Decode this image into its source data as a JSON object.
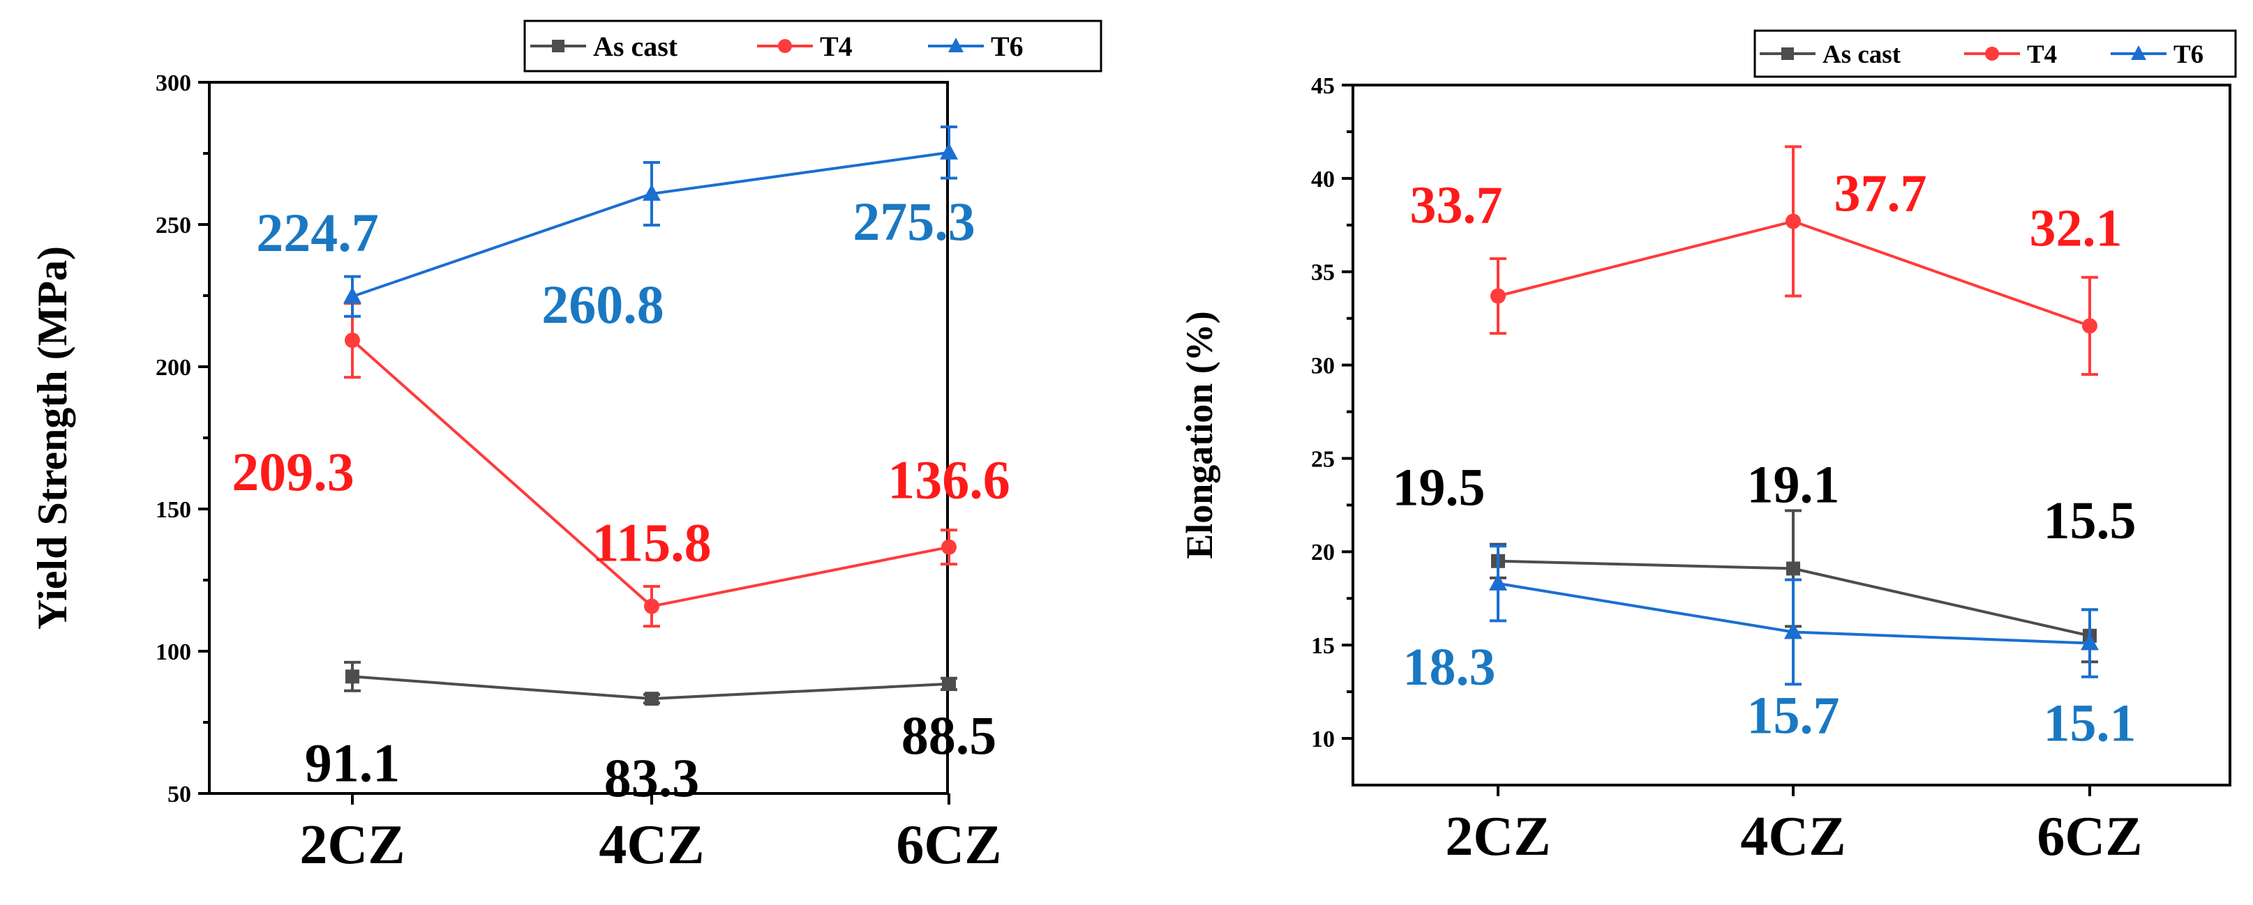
{
  "colors": {
    "as_cast": "#4d4d4d",
    "t4": "#ff3b3b",
    "t6": "#1a6fd1",
    "t6_label": "#1a78c2",
    "t4_label": "#ff1a1a",
    "as_cast_label": "#000000"
  },
  "chart_data": [
    {
      "type": "line",
      "title": "",
      "xlabel": "",
      "ylabel": "Yield Strength (MPa)",
      "categories": [
        "2CZ",
        "4CZ",
        "6CZ"
      ],
      "ylim": [
        50,
        300
      ],
      "yticks": [
        50,
        100,
        150,
        200,
        250,
        300
      ],
      "legend": [
        "As cast",
        "T4",
        "T6"
      ],
      "legend_position": "top-right",
      "series": [
        {
          "name": "As cast",
          "values": [
            91.1,
            83.3,
            88.5
          ],
          "errors": [
            5,
            1.5,
            2
          ],
          "labels": [
            "91.1",
            "83.3",
            "88.5"
          ],
          "marker": "square"
        },
        {
          "name": "T4",
          "values": [
            209.3,
            115.8,
            136.6
          ],
          "errors": [
            13,
            7,
            6
          ],
          "labels": [
            "209.3",
            "115.8",
            "136.6"
          ],
          "marker": "circle"
        },
        {
          "name": "T6",
          "values": [
            224.7,
            260.8,
            275.3
          ],
          "errors": [
            7,
            11,
            9
          ],
          "labels": [
            "224.7",
            "260.8",
            "275.3"
          ],
          "marker": "triangle"
        }
      ]
    },
    {
      "type": "line",
      "title": "",
      "xlabel": "",
      "ylabel": "Elongation (%)",
      "categories": [
        "2CZ",
        "4CZ",
        "6CZ"
      ],
      "ylim": [
        7.5,
        45
      ],
      "yticks": [
        10,
        15,
        20,
        25,
        30,
        35,
        40,
        45
      ],
      "legend": [
        "As cast",
        "T4",
        "T6"
      ],
      "legend_position": "top-right",
      "series": [
        {
          "name": "As cast",
          "values": [
            19.5,
            19.1,
            15.5
          ],
          "errors": [
            0.9,
            3.1,
            1.4
          ],
          "labels": [
            "19.5",
            "19.1",
            "15.5"
          ],
          "marker": "square"
        },
        {
          "name": "T4",
          "values": [
            33.7,
            37.7,
            32.1
          ],
          "errors": [
            2.0,
            4.0,
            2.6
          ],
          "labels": [
            "33.7",
            "37.7",
            "32.1"
          ],
          "marker": "circle"
        },
        {
          "name": "T6",
          "values": [
            18.3,
            15.7,
            15.1
          ],
          "errors": [
            2.0,
            2.8,
            1.8
          ],
          "labels": [
            "18.3",
            "15.7",
            "15.1"
          ],
          "marker": "triangle"
        }
      ]
    }
  ]
}
